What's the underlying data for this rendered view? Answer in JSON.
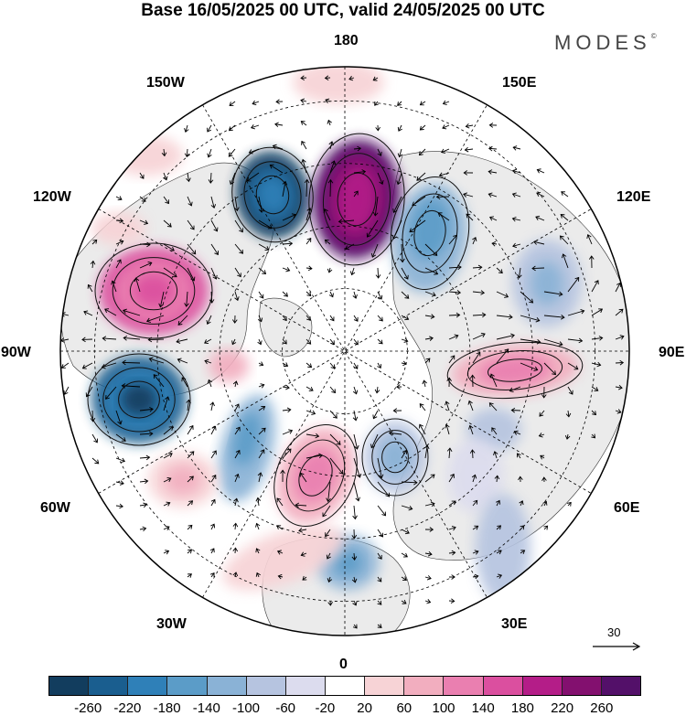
{
  "title": "Base 16/05/2025 00 UTC, valid 24/05/2025 00 UTC",
  "brand": "MODES",
  "brand_mark": "©",
  "meridian_labels": {
    "n180": "180",
    "e150": "150E",
    "e120": "120E",
    "e90": "90E",
    "e60": "60E",
    "e30": "30E",
    "n0": "0",
    "w30": "30W",
    "w60": "60W",
    "w90": "90W",
    "w120": "120W",
    "w150": "150W"
  },
  "vector_scale_label": "30",
  "colorbar": {
    "ticks": [
      "-260",
      "-220",
      "-180",
      "-140",
      "-100",
      "-60",
      "-20",
      "20",
      "60",
      "100",
      "140",
      "180",
      "220",
      "260"
    ],
    "colors": [
      "#123d5e",
      "#1a5e8f",
      "#2f80b8",
      "#5b9cc8",
      "#8ab2d6",
      "#b6c4e0",
      "#dcdcee",
      "#ffffff",
      "#f7d3d6",
      "#f2aebf",
      "#ea7fb0",
      "#db4f9f",
      "#b41d88",
      "#83106f",
      "#531069"
    ]
  },
  "map_colors": {
    "land_fill": "#ebebeb",
    "coast": "#333333"
  }
}
